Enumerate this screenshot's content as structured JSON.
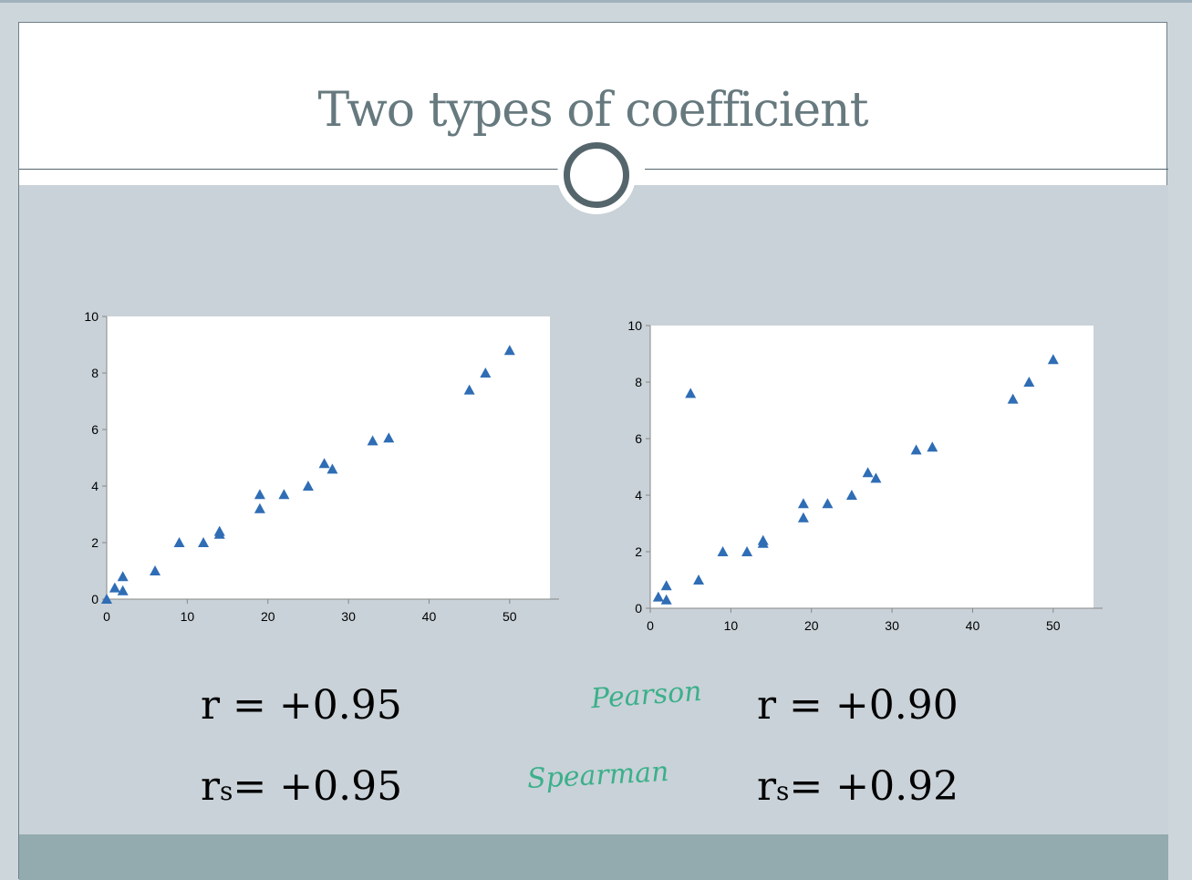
{
  "slide": {
    "title": "Two types of coefficient"
  },
  "colors": {
    "marker": "#2f6db5",
    "title": "#66797e",
    "content_bg": "#c9d2d8",
    "footer_bg": "#93abae",
    "annotation": "#3bb08a"
  },
  "stats": {
    "left_r_label": "r = +0.95",
    "left_rs_r": "r",
    "left_rs_s": "s",
    "left_rs_value": "= +0.95",
    "right_r_label": "r = +0.90",
    "right_rs_r": "r",
    "right_rs_s": "s",
    "right_rs_value": "= +0.92"
  },
  "annotations": {
    "pearson": "Pearson",
    "spearman": "Spearman"
  },
  "chart_data": [
    {
      "type": "scatter",
      "marker": "triangle",
      "xlim": [
        0,
        55
      ],
      "ylim": [
        0,
        10
      ],
      "xticks": [
        0,
        10,
        20,
        30,
        40,
        50
      ],
      "yticks": [
        0,
        2,
        4,
        6,
        8,
        10
      ],
      "grid": false,
      "x": [
        0,
        1,
        2,
        2,
        6,
        9,
        12,
        14,
        14,
        19,
        19,
        22,
        25,
        27,
        28,
        33,
        35,
        45,
        47,
        50
      ],
      "y": [
        0,
        0.4,
        0.8,
        0.3,
        1.0,
        2.0,
        2.0,
        2.3,
        2.4,
        3.2,
        3.7,
        3.7,
        4.0,
        4.8,
        4.6,
        5.6,
        5.7,
        7.4,
        8.0,
        8.8
      ]
    },
    {
      "type": "scatter",
      "marker": "triangle",
      "xlim": [
        0,
        55
      ],
      "ylim": [
        0,
        10
      ],
      "xticks": [
        0,
        10,
        20,
        30,
        40,
        50
      ],
      "yticks": [
        0,
        2,
        4,
        6,
        8,
        10
      ],
      "grid": false,
      "x": [
        1,
        2,
        2,
        5,
        6,
        9,
        12,
        14,
        14,
        19,
        19,
        22,
        25,
        27,
        28,
        33,
        35,
        45,
        47,
        50
      ],
      "y": [
        0.4,
        0.8,
        0.3,
        7.6,
        1.0,
        2.0,
        2.0,
        2.3,
        2.4,
        3.2,
        3.7,
        3.7,
        4.0,
        4.8,
        4.6,
        5.6,
        5.7,
        7.4,
        8.0,
        8.8
      ]
    }
  ]
}
